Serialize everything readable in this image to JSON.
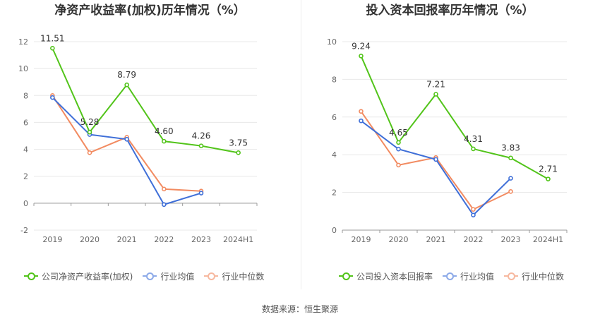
{
  "chart_data": [
    {
      "type": "line",
      "title": "净资产收益率(加权)历年情况（%）",
      "categories": [
        "2019",
        "2020",
        "2021",
        "2022",
        "2023",
        "2024H1"
      ],
      "ylim": [
        -2,
        12
      ],
      "yticks": [
        -2,
        0,
        2,
        4,
        6,
        8,
        10,
        12
      ],
      "grid": true,
      "legend_position": "bottom",
      "series": [
        {
          "name": "公司净资产收益率(加权)",
          "color": "#52c41a",
          "values": [
            11.51,
            5.28,
            8.79,
            4.6,
            4.26,
            3.75
          ],
          "labels": [
            "11.51",
            "5.28",
            "8.79",
            "4.60",
            "4.26",
            "3.75"
          ]
        },
        {
          "name": "行业均值",
          "color": "#3f6fd8",
          "values": [
            7.85,
            5.1,
            4.75,
            -0.1,
            0.75,
            null
          ]
        },
        {
          "name": "行业中位数",
          "color": "#f28b61",
          "values": [
            8.0,
            3.75,
            4.9,
            1.05,
            0.9,
            null
          ]
        }
      ]
    },
    {
      "type": "line",
      "title": "投入资本回报率历年情况（%）",
      "categories": [
        "2019",
        "2020",
        "2021",
        "2022",
        "2023",
        "2024H1"
      ],
      "ylim": [
        0,
        10
      ],
      "yticks": [
        0,
        2,
        4,
        6,
        8,
        10
      ],
      "grid": true,
      "legend_position": "bottom",
      "series": [
        {
          "name": "公司投入资本回报率",
          "color": "#52c41a",
          "values": [
            9.24,
            4.65,
            7.21,
            4.31,
            3.83,
            2.71
          ],
          "labels": [
            "9.24",
            "4.65",
            "7.21",
            "4.31",
            "3.83",
            "2.71"
          ]
        },
        {
          "name": "行业均值",
          "color": "#3f6fd8",
          "values": [
            5.8,
            4.3,
            3.75,
            0.8,
            2.75,
            null
          ]
        },
        {
          "name": "行业中位数",
          "color": "#f28b61",
          "values": [
            6.3,
            3.45,
            3.85,
            1.1,
            2.05,
            null
          ]
        }
      ]
    }
  ],
  "source": "数据来源：恒生聚源"
}
